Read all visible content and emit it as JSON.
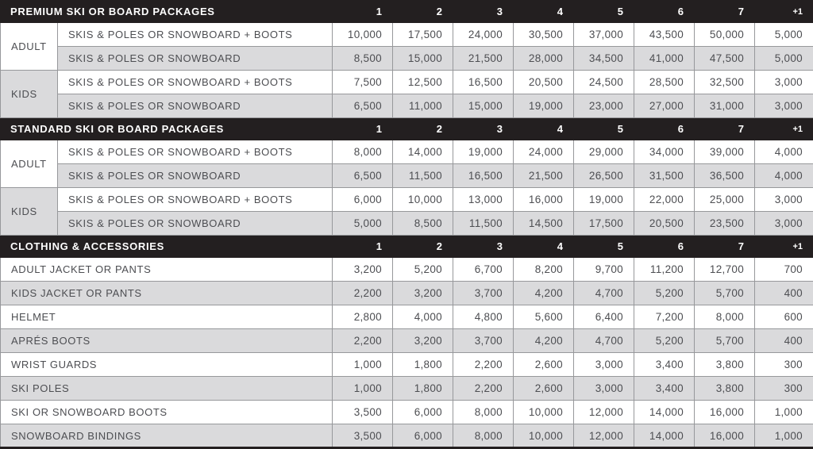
{
  "colors": {
    "header_bg": "#231f20",
    "header_text": "#ffffff",
    "row_alt": "#dadadc",
    "row_base": "#ffffff",
    "text": "#4d4e52",
    "grid_line": "#97989b"
  },
  "columns": [
    "1",
    "2",
    "3",
    "4",
    "5",
    "6",
    "7",
    "+1"
  ],
  "sections": [
    {
      "title": "PREMIUM SKI OR BOARD PACKAGES",
      "groups": [
        {
          "label": "ADULT",
          "rows": [
            {
              "desc": "SKIS & POLES OR SNOWBOARD + BOOTS",
              "values": [
                "10,000",
                "17,500",
                "24,000",
                "30,500",
                "37,000",
                "43,500",
                "50,000",
                "5,000"
              ]
            },
            {
              "desc": "SKIS & POLES OR SNOWBOARD",
              "values": [
                "8,500",
                "15,000",
                "21,500",
                "28,000",
                "34,500",
                "41,000",
                "47,500",
                "5,000"
              ]
            }
          ]
        },
        {
          "label": "KIDS",
          "rows": [
            {
              "desc": "SKIS & POLES OR SNOWBOARD + BOOTS",
              "values": [
                "7,500",
                "12,500",
                "16,500",
                "20,500",
                "24,500",
                "28,500",
                "32,500",
                "3,000"
              ]
            },
            {
              "desc": "SKIS & POLES OR SNOWBOARD",
              "values": [
                "6,500",
                "11,000",
                "15,000",
                "19,000",
                "23,000",
                "27,000",
                "31,000",
                "3,000"
              ]
            }
          ]
        }
      ]
    },
    {
      "title": "STANDARD SKI OR BOARD PACKAGES",
      "groups": [
        {
          "label": "ADULT",
          "rows": [
            {
              "desc": "SKIS & POLES OR SNOWBOARD + BOOTS",
              "values": [
                "8,000",
                "14,000",
                "19,000",
                "24,000",
                "29,000",
                "34,000",
                "39,000",
                "4,000"
              ]
            },
            {
              "desc": "SKIS & POLES OR SNOWBOARD",
              "values": [
                "6,500",
                "11,500",
                "16,500",
                "21,500",
                "26,500",
                "31,500",
                "36,500",
                "4,000"
              ]
            }
          ]
        },
        {
          "label": "KIDS",
          "rows": [
            {
              "desc": "SKIS & POLES OR SNOWBOARD + BOOTS",
              "values": [
                "6,000",
                "10,000",
                "13,000",
                "16,000",
                "19,000",
                "22,000",
                "25,000",
                "3,000"
              ]
            },
            {
              "desc": "SKIS & POLES OR SNOWBOARD",
              "values": [
                "5,000",
                "8,500",
                "11,500",
                "14,500",
                "17,500",
                "20,500",
                "23,500",
                "3,000"
              ]
            }
          ]
        }
      ]
    },
    {
      "title": "CLOTHING & ACCESSORIES",
      "rows": [
        {
          "desc": "ADULT JACKET OR PANTS",
          "values": [
            "3,200",
            "5,200",
            "6,700",
            "8,200",
            "9,700",
            "11,200",
            "12,700",
            "700"
          ]
        },
        {
          "desc": "KIDS JACKET OR PANTS",
          "values": [
            "2,200",
            "3,200",
            "3,700",
            "4,200",
            "4,700",
            "5,200",
            "5,700",
            "400"
          ]
        },
        {
          "desc": "HELMET",
          "values": [
            "2,800",
            "4,000",
            "4,800",
            "5,600",
            "6,400",
            "7,200",
            "8,000",
            "600"
          ]
        },
        {
          "desc": "APRÉS BOOTS",
          "values": [
            "2,200",
            "3,200",
            "3,700",
            "4,200",
            "4,700",
            "5,200",
            "5,700",
            "400"
          ]
        },
        {
          "desc": "WRIST GUARDS",
          "values": [
            "1,000",
            "1,800",
            "2,200",
            "2,600",
            "3,000",
            "3,400",
            "3,800",
            "300"
          ]
        },
        {
          "desc": "SKI POLES",
          "values": [
            "1,000",
            "1,800",
            "2,200",
            "2,600",
            "3,000",
            "3,400",
            "3,800",
            "300"
          ]
        },
        {
          "desc": "SKI OR SNOWBOARD BOOTS",
          "values": [
            "3,500",
            "6,000",
            "8,000",
            "10,000",
            "12,000",
            "14,000",
            "16,000",
            "1,000"
          ]
        },
        {
          "desc": "SNOWBOARD BINDINGS",
          "values": [
            "3,500",
            "6,000",
            "8,000",
            "10,000",
            "12,000",
            "14,000",
            "16,000",
            "1,000"
          ]
        }
      ]
    }
  ]
}
